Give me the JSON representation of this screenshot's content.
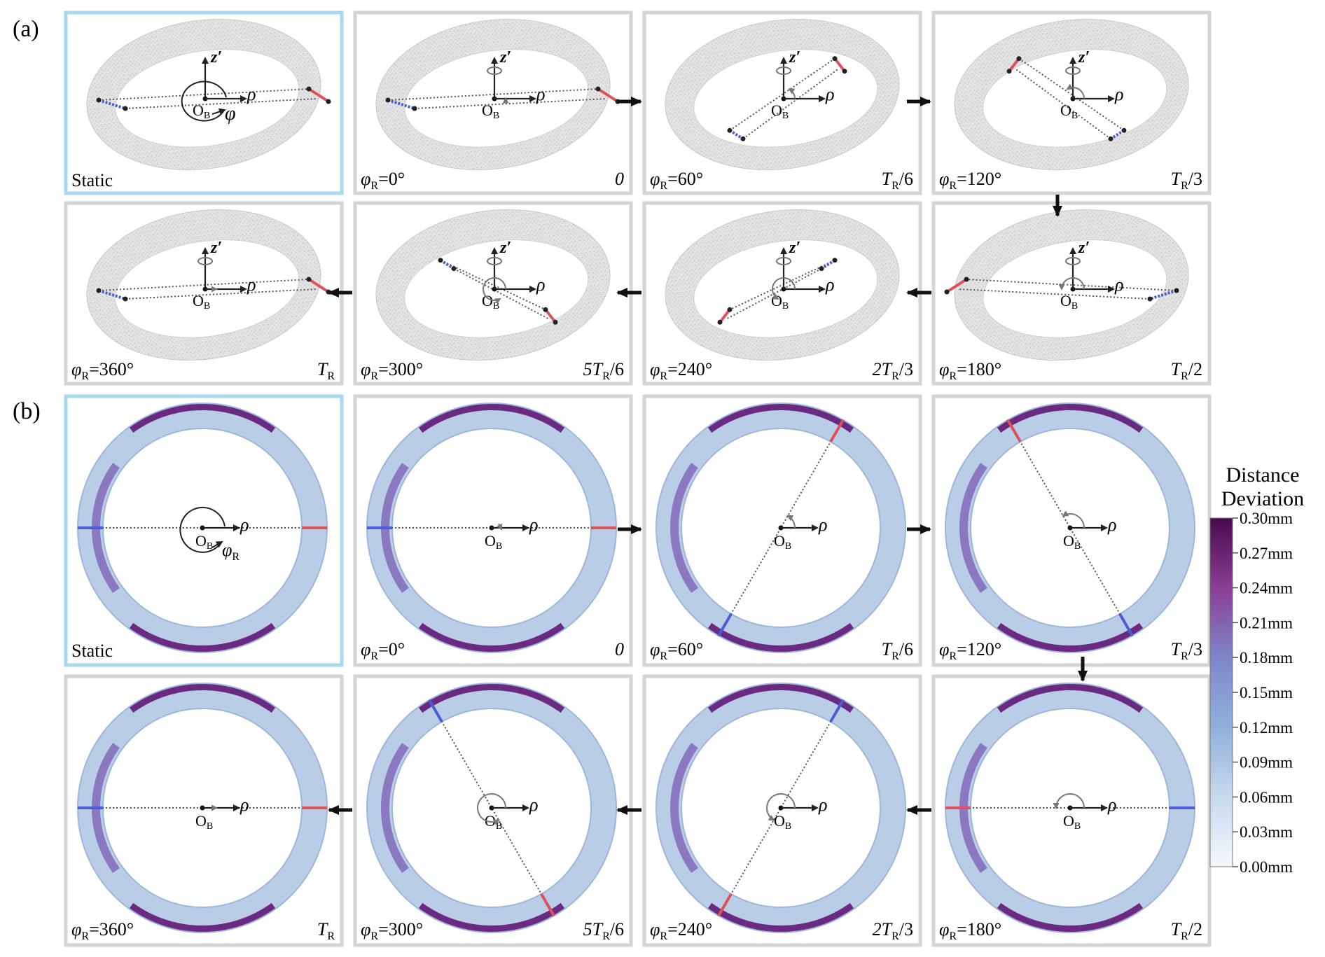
{
  "figure": {
    "section_a_label": "(a)",
    "section_b_label": "(b)",
    "axis_labels": {
      "z": "z′",
      "rho": "ρ",
      "phi": "φ",
      "origin": "O",
      "origin_sub": "B"
    },
    "panels_a": [
      {
        "id": "static",
        "angle_prefix": "",
        "angle_value": "",
        "is_static": true,
        "left_text": "Static",
        "time": "",
        "time_main": "",
        "time_sub": "",
        "time_tail": "",
        "red_angle": 0
      },
      {
        "id": "phi0",
        "angle_prefix": "φ",
        "angle_sub": "R",
        "angle_value": "=0°",
        "is_static": false,
        "time_main": "0",
        "time_sub": "",
        "time_tail": "",
        "red_angle": 0
      },
      {
        "id": "phi60",
        "angle_prefix": "φ",
        "angle_sub": "R",
        "angle_value": "=60°",
        "is_static": false,
        "time_main": "T",
        "time_sub": "R",
        "time_tail": "/6",
        "red_angle": 60
      },
      {
        "id": "phi120",
        "angle_prefix": "φ",
        "angle_sub": "R",
        "angle_value": "=120°",
        "is_static": false,
        "time_main": "T",
        "time_sub": "R",
        "time_tail": "/3",
        "red_angle": 120
      },
      {
        "id": "phi360",
        "angle_prefix": "φ",
        "angle_sub": "R",
        "angle_value": "=360°",
        "is_static": false,
        "time_main": "T",
        "time_sub": "R",
        "time_tail": "",
        "red_angle": 360
      },
      {
        "id": "phi300",
        "angle_prefix": "φ",
        "angle_sub": "R",
        "angle_value": "=300°",
        "is_static": false,
        "time_main": "5T",
        "time_sub": "R",
        "time_tail": "/6",
        "red_angle": 300
      },
      {
        "id": "phi240",
        "angle_prefix": "φ",
        "angle_sub": "R",
        "angle_value": "=240°",
        "is_static": false,
        "time_main": "2T",
        "time_sub": "R",
        "time_tail": "/3",
        "red_angle": 240
      },
      {
        "id": "phi180",
        "angle_prefix": "φ",
        "angle_sub": "R",
        "angle_value": "=180°",
        "is_static": false,
        "time_main": "T",
        "time_sub": "R",
        "time_tail": "/2",
        "red_angle": 180
      }
    ],
    "colorbar": {
      "title_line1": "Distance",
      "title_line2": "Deviation",
      "ticks": [
        "0.30mm",
        "0.27mm",
        "0.24mm",
        "0.21mm",
        "0.18mm",
        "0.15mm",
        "0.12mm",
        "0.09mm",
        "0.06mm",
        "0.03mm",
        "0.00mm"
      ],
      "color_low": "#f4f8fc",
      "color_mid": "#9bb6dd",
      "color_high": "#4a0a4e"
    },
    "colors": {
      "frame": "#d4d4d4",
      "frame_static": "#a9d8f0",
      "marker_red": "#e0505a",
      "marker_blue": "#4a5cd8",
      "ring_base": "#b9cde6",
      "ring_dark": "#6a2a82",
      "pointcloud": "#dcdcdc"
    }
  }
}
